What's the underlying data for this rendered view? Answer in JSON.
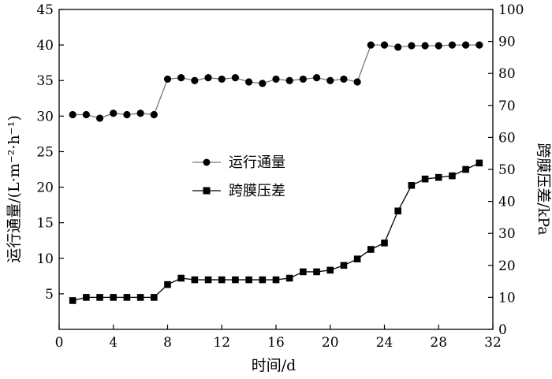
{
  "chart_data": {
    "type": "line",
    "xlabel": "时间/d",
    "ylabel_left": "运行通量/(L·m⁻²·h⁻¹)",
    "ylabel_right": "跨膜压差/kPa",
    "xlim": [
      0,
      32
    ],
    "ylim_left": [
      0,
      45
    ],
    "ylim_right": [
      0,
      100
    ],
    "x_ticks": [
      0,
      4,
      8,
      12,
      16,
      20,
      24,
      28,
      32
    ],
    "y_left_ticks": [
      5,
      10,
      15,
      20,
      25,
      30,
      35,
      40,
      45
    ],
    "y_right_ticks": [
      0,
      10,
      20,
      30,
      40,
      50,
      60,
      70,
      80,
      90,
      100
    ],
    "legend_position": "center-left",
    "series": [
      {
        "name": "运行通量",
        "axis": "left",
        "marker": "circle",
        "color": "#000000",
        "line_color": "#777777",
        "x": [
          1,
          2,
          3,
          4,
          5,
          6,
          7,
          8,
          9,
          10,
          11,
          12,
          13,
          14,
          15,
          16,
          17,
          18,
          19,
          20,
          21,
          22,
          23,
          24,
          25,
          26,
          27,
          28,
          29,
          30,
          31
        ],
        "y": [
          30.2,
          30.2,
          29.7,
          30.4,
          30.2,
          30.4,
          30.2,
          35.2,
          35.4,
          35.0,
          35.4,
          35.2,
          35.4,
          34.8,
          34.6,
          35.2,
          35.0,
          35.2,
          35.4,
          35.0,
          35.2,
          34.8,
          40.0,
          40.0,
          39.7,
          39.9,
          39.9,
          39.9,
          40.0,
          40.0,
          40.0
        ]
      },
      {
        "name": "跨膜压差",
        "axis": "right",
        "marker": "square",
        "color": "#000000",
        "line_color": "#000000",
        "x": [
          1,
          2,
          3,
          4,
          5,
          6,
          7,
          8,
          9,
          10,
          11,
          12,
          13,
          14,
          15,
          16,
          17,
          18,
          19,
          20,
          21,
          22,
          23,
          24,
          25,
          26,
          27,
          28,
          29,
          30,
          31
        ],
        "y": [
          9,
          10,
          10,
          10,
          10,
          10,
          10,
          14,
          16,
          15.5,
          15.5,
          15.5,
          15.5,
          15.5,
          15.5,
          15.5,
          16,
          18,
          18,
          18.5,
          20,
          22,
          25,
          27,
          37,
          45,
          47,
          47.5,
          48,
          50,
          52
        ]
      }
    ]
  }
}
